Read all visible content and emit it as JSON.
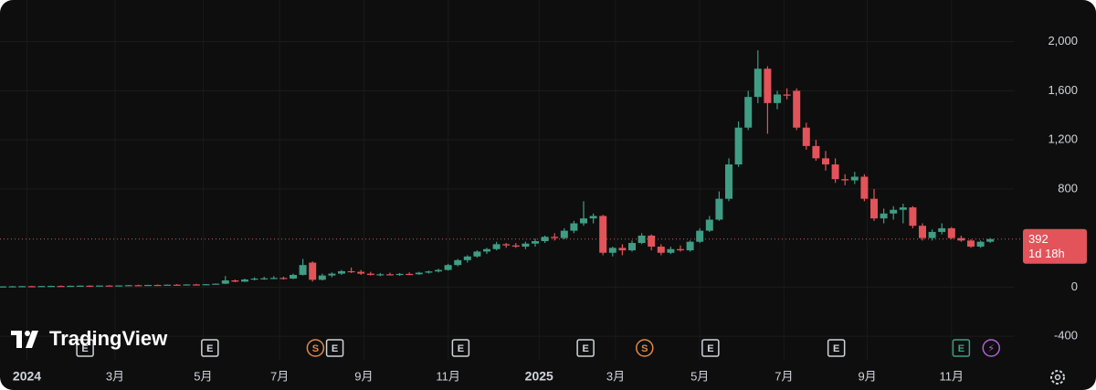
{
  "chart_data": {
    "type": "candlestick",
    "brand": "TradingView",
    "up_color": "#3f9d84",
    "down_color": "#e2535a",
    "grid": true,
    "categories": [
      null,
      null,
      null,
      null,
      null,
      null,
      null,
      null,
      null,
      null,
      null,
      null,
      null,
      null,
      null,
      null,
      null,
      null,
      null,
      null,
      null,
      null,
      null,
      null,
      null,
      null,
      null,
      null,
      null,
      null,
      null,
      null,
      null,
      null,
      null,
      null,
      null,
      null,
      null,
      null,
      null,
      null,
      null,
      null,
      null,
      null,
      null,
      null,
      null,
      null,
      null,
      null,
      null,
      null,
      null,
      null,
      null,
      null,
      null,
      null,
      null,
      null,
      null,
      null,
      null,
      null,
      null,
      null,
      null,
      null,
      null,
      null,
      null,
      null,
      null,
      null,
      null,
      null,
      null,
      null,
      null,
      null,
      null,
      null,
      null,
      null,
      null,
      null,
      null,
      null,
      null,
      null,
      null,
      null,
      null,
      null,
      null,
      null,
      null,
      null,
      null,
      null,
      null
    ],
    "open": [
      5,
      6,
      7,
      8,
      7,
      9,
      10,
      9,
      11,
      12,
      11,
      13,
      12,
      14,
      16,
      15,
      18,
      17,
      20,
      19,
      22,
      21,
      24,
      28,
      55,
      45,
      62,
      70,
      72,
      75,
      70,
      100,
      200,
      60,
      95,
      110,
      130,
      125,
      110,
      100,
      105,
      100,
      108,
      105,
      118,
      128,
      140,
      180,
      220,
      250,
      290,
      310,
      350,
      340,
      330,
      355,
      375,
      410,
      400,
      460,
      520,
      560,
      580,
      280,
      320,
      300,
      360,
      420,
      330,
      280,
      310,
      300,
      370,
      460,
      550,
      720,
      1000,
      1300,
      1550,
      1780,
      1500,
      1570,
      1600,
      1300,
      1150,
      1050,
      1000,
      880,
      870,
      900,
      720,
      560,
      600,
      630,
      650,
      500,
      400,
      450,
      480,
      400,
      380,
      330,
      370
    ],
    "high": [
      8,
      9,
      10,
      11,
      10,
      12,
      13,
      12,
      14,
      15,
      14,
      16,
      15,
      18,
      20,
      19,
      22,
      22,
      25,
      24,
      27,
      26,
      30,
      90,
      62,
      70,
      80,
      85,
      90,
      85,
      110,
      230,
      210,
      110,
      120,
      140,
      160,
      140,
      125,
      115,
      118,
      115,
      120,
      125,
      135,
      150,
      190,
      230,
      260,
      300,
      320,
      370,
      360,
      360,
      370,
      395,
      420,
      440,
      480,
      540,
      700,
      600,
      590,
      330,
      350,
      380,
      440,
      430,
      350,
      330,
      340,
      380,
      480,
      580,
      780,
      1050,
      1350,
      1600,
      1930,
      1800,
      1600,
      1620,
      1620,
      1340,
      1200,
      1110,
      1050,
      920,
      940,
      920,
      800,
      640,
      660,
      680,
      660,
      520,
      470,
      520,
      490,
      420,
      390,
      380,
      400
    ],
    "low": [
      3,
      4,
      5,
      6,
      5,
      7,
      8,
      7,
      9,
      10,
      9,
      11,
      10,
      12,
      14,
      13,
      16,
      15,
      18,
      17,
      20,
      19,
      22,
      26,
      40,
      42,
      55,
      60,
      65,
      62,
      65,
      95,
      45,
      55,
      80,
      100,
      115,
      100,
      95,
      90,
      95,
      92,
      98,
      100,
      110,
      120,
      135,
      170,
      200,
      240,
      270,
      300,
      320,
      320,
      310,
      330,
      360,
      380,
      390,
      440,
      500,
      520,
      260,
      250,
      260,
      290,
      350,
      300,
      260,
      270,
      290,
      290,
      360,
      450,
      540,
      700,
      980,
      1280,
      1500,
      1250,
      1450,
      1530,
      1280,
      1120,
      1030,
      950,
      850,
      830,
      840,
      700,
      540,
      520,
      550,
      520,
      480,
      380,
      380,
      430,
      390,
      370,
      320,
      320,
      360
    ],
    "close": [
      6,
      7,
      8,
      7,
      9,
      10,
      9,
      11,
      12,
      11,
      13,
      12,
      14,
      16,
      15,
      18,
      17,
      20,
      19,
      22,
      21,
      24,
      28,
      55,
      45,
      62,
      70,
      72,
      75,
      70,
      100,
      180,
      60,
      95,
      110,
      130,
      125,
      110,
      100,
      105,
      100,
      108,
      105,
      118,
      128,
      140,
      180,
      220,
      250,
      290,
      310,
      350,
      340,
      330,
      355,
      375,
      410,
      400,
      460,
      520,
      560,
      580,
      280,
      320,
      300,
      360,
      420,
      330,
      280,
      310,
      300,
      370,
      460,
      550,
      720,
      1000,
      1300,
      1550,
      1780,
      1500,
      1570,
      1560,
      1300,
      1150,
      1050,
      1000,
      880,
      870,
      900,
      720,
      560,
      600,
      630,
      650,
      500,
      400,
      450,
      480,
      400,
      380,
      330,
      370,
      392
    ],
    "current_price": 392,
    "countdown": "1d 18h",
    "ylim": [
      -600,
      2340
    ],
    "yticks": [
      {
        "value": 2000,
        "label": "2,000"
      },
      {
        "value": 1600,
        "label": "1,600"
      },
      {
        "value": 1200,
        "label": "1,200"
      },
      800,
      0,
      -400
    ],
    "xticks": [
      {
        "value": 2.5,
        "label": "2024"
      },
      {
        "value": 11.6,
        "label": "3月"
      },
      {
        "value": 20.7,
        "label": "5月"
      },
      {
        "value": 28.6,
        "label": "7月"
      },
      {
        "value": 37.3,
        "label": "9月"
      },
      {
        "value": 46,
        "label": "11月"
      },
      {
        "value": 55.4,
        "label": "2025"
      },
      {
        "value": 63.3,
        "label": "3月"
      },
      {
        "value": 72,
        "label": "5月"
      },
      {
        "value": 80.7,
        "label": "7月"
      },
      {
        "value": 89.3,
        "label": "9月"
      },
      {
        "value": 98,
        "label": "11月"
      }
    ],
    "events": [
      {
        "label": "E",
        "at": 8.5,
        "color": "#d1d4dc"
      },
      {
        "label": "E",
        "at": 21.4,
        "color": "#d1d4dc"
      },
      {
        "label": "S",
        "at": 32.3,
        "color": "#e0894a"
      },
      {
        "label": "E",
        "at": 34.3,
        "color": "#d1d4dc"
      },
      {
        "label": "E",
        "at": 47.3,
        "color": "#d1d4dc"
      },
      {
        "label": "E",
        "at": 60.2,
        "color": "#d1d4dc"
      },
      {
        "label": "S",
        "at": 66.3,
        "color": "#e0894a"
      },
      {
        "label": "E",
        "at": 73.1,
        "color": "#d1d4dc"
      },
      {
        "label": "E",
        "at": 86.1,
        "color": "#d1d4dc"
      },
      {
        "label": "E",
        "at": 99,
        "color": "#3f9d84"
      },
      {
        "label": "⚡",
        "at": 102.1,
        "color": "#b061d6"
      }
    ]
  }
}
